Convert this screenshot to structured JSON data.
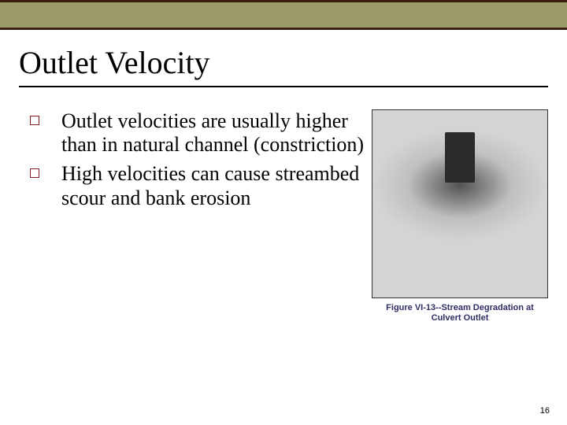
{
  "header": {
    "olive_color": "#9a9a6a",
    "dark_bar_color": "#3b1f0f"
  },
  "title": "Outlet Velocity",
  "bullets": {
    "marker_color": "#891f1f",
    "items": [
      "Outlet velocities are usually higher than in natural channel (constriction)",
      "High velocities can cause streambed scour and bank erosion"
    ]
  },
  "figure": {
    "caption": "Figure VI-13--Stream Degradation at Culvert Outlet",
    "caption_color": "#2f2f66"
  },
  "page_number": "16"
}
